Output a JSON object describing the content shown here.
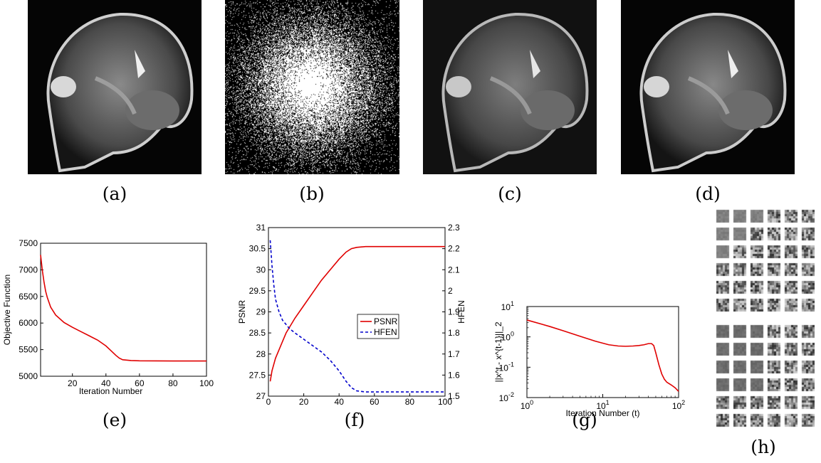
{
  "captions": {
    "a": "(a)",
    "b": "(b)",
    "c": "(c)",
    "d": "(d)",
    "e": "(e)",
    "f": "(f)",
    "g": "(g)",
    "h": "(h)"
  },
  "images": {
    "a": "brain-mri-sagittal-reference",
    "b": "sampling-mask-variable-density",
    "c": "brain-mri-zero-filled-reconstruction",
    "d": "brain-mri-reconstruction",
    "h": "learned-dictionary-atoms"
  },
  "chart_data": [
    {
      "id": "e",
      "type": "line",
      "xlabel": "Iteration Number",
      "ylabel": "Objective Function",
      "xlim": [
        1,
        100
      ],
      "ylim": [
        5000,
        7500
      ],
      "xticks": [
        20,
        40,
        60,
        80,
        100
      ],
      "yticks": [
        5000,
        5500,
        6000,
        6500,
        7000,
        7500
      ],
      "series": [
        {
          "color": "#e00000",
          "x": [
            1,
            2,
            3,
            4,
            5,
            7,
            10,
            15,
            20,
            25,
            30,
            35,
            40,
            43,
            46,
            48,
            50,
            55,
            60,
            70,
            80,
            90,
            100
          ],
          "y": [
            7280,
            7000,
            6780,
            6600,
            6480,
            6300,
            6150,
            6010,
            5920,
            5840,
            5760,
            5680,
            5570,
            5480,
            5390,
            5340,
            5310,
            5295,
            5290,
            5288,
            5287,
            5287,
            5287
          ]
        }
      ]
    },
    {
      "id": "f",
      "type": "line",
      "xlabel": "Iteration Number",
      "ylabel": "PSNR",
      "ylabel_right": "HFEN",
      "xlim": [
        0,
        100
      ],
      "ylim": [
        27,
        31
      ],
      "ylim_right": [
        1.5,
        2.3
      ],
      "xticks": [
        0,
        20,
        40,
        60,
        80,
        100
      ],
      "yticks": [
        27,
        27.5,
        28,
        28.5,
        29,
        29.5,
        30,
        30.5,
        31
      ],
      "yticks_right": [
        1.5,
        1.6,
        1.7,
        1.8,
        1.9,
        2,
        2.1,
        2.2,
        2.3
      ],
      "legend": [
        "PSNR",
        "HFEN"
      ],
      "legend_position": "center-right",
      "series": [
        {
          "name": "PSNR",
          "axis": "left",
          "color": "#e00000",
          "dash": "solid",
          "x": [
            1,
            2,
            4,
            6,
            8,
            10,
            15,
            20,
            25,
            30,
            35,
            40,
            44,
            47,
            50,
            55,
            60,
            70,
            80,
            90,
            100
          ],
          "y": [
            27.35,
            27.6,
            27.9,
            28.1,
            28.3,
            28.5,
            28.85,
            29.15,
            29.45,
            29.75,
            30.0,
            30.25,
            30.42,
            30.5,
            30.53,
            30.55,
            30.55,
            30.55,
            30.55,
            30.55,
            30.55
          ]
        },
        {
          "name": "HFEN",
          "axis": "right",
          "color": "#0000cc",
          "dash": "dashed",
          "x": [
            1,
            2,
            3,
            4,
            6,
            8,
            10,
            12,
            15,
            20,
            25,
            30,
            35,
            40,
            44,
            47,
            50,
            55,
            60,
            70,
            80,
            90,
            100
          ],
          "y": [
            2.24,
            2.12,
            2.03,
            1.96,
            1.9,
            1.86,
            1.84,
            1.82,
            1.8,
            1.77,
            1.74,
            1.71,
            1.67,
            1.62,
            1.57,
            1.54,
            1.525,
            1.52,
            1.52,
            1.52,
            1.52,
            1.52,
            1.52
          ]
        }
      ]
    },
    {
      "id": "g",
      "type": "line",
      "xlabel": "Iteration Number (t)",
      "ylabel": "||x^t - x^{t-1}||_2",
      "xscale": "log",
      "yscale": "log",
      "xlim": [
        1,
        100
      ],
      "ylim": [
        0.01,
        10
      ],
      "xtick_labels": [
        "10^0",
        "10^1",
        "10^2"
      ],
      "ytick_labels": [
        "10^-2",
        "10^-1",
        "10^0",
        "10^1"
      ],
      "series": [
        {
          "color": "#e00000",
          "x": [
            1,
            2,
            3,
            5,
            8,
            12,
            16,
            20,
            25,
            30,
            35,
            40,
            44,
            47,
            50,
            55,
            60,
            65,
            70,
            80,
            90,
            100
          ],
          "y": [
            3.6,
            2.2,
            1.6,
            1.05,
            0.72,
            0.55,
            0.5,
            0.49,
            0.5,
            0.52,
            0.55,
            0.6,
            0.6,
            0.52,
            0.3,
            0.12,
            0.06,
            0.04,
            0.032,
            0.026,
            0.021,
            0.016
          ]
        }
      ]
    }
  ]
}
